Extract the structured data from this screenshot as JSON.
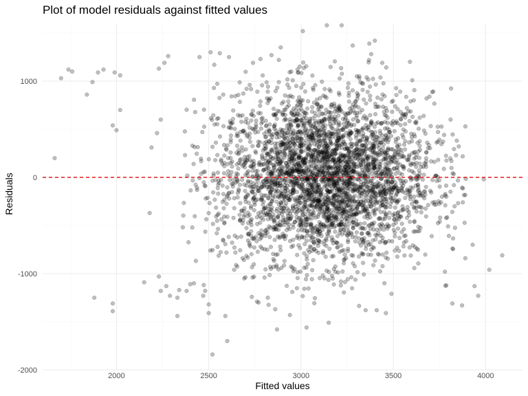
{
  "chart_data": {
    "type": "scatter",
    "title": "Plot of model residuals against fitted values",
    "xlabel": "Fitted values",
    "ylabel": "Residuals",
    "xlim": [
      1600,
      4200
    ],
    "ylim": [
      -2000,
      1600
    ],
    "x_ticks": [
      2000,
      2500,
      3000,
      3500,
      4000
    ],
    "x_tick_labels": [
      "2000",
      "2500",
      "3000",
      "3500",
      "4000"
    ],
    "y_ticks": [
      -2000,
      -1000,
      0,
      1000
    ],
    "y_tick_labels": [
      "-2000",
      "-1000",
      "0",
      "1000"
    ],
    "grid": true,
    "reference_line": {
      "y": 0,
      "style": "dashed",
      "color": "#e41a1c"
    },
    "point_color": "#000000",
    "cluster": {
      "center_x": 3130,
      "center_y": 0,
      "sd_x": 290,
      "sd_y": 440,
      "count": 3600
    },
    "points": [
      [
        1665,
        200
      ],
      [
        1700,
        1030
      ],
      [
        1740,
        1120
      ],
      [
        1760,
        1100
      ],
      [
        1840,
        860
      ],
      [
        1870,
        990
      ],
      [
        1900,
        1090
      ],
      [
        1930,
        1120
      ],
      [
        1980,
        540
      ],
      [
        1990,
        1090
      ],
      [
        2000,
        490
      ],
      [
        2020,
        1060
      ],
      [
        2020,
        700
      ],
      [
        1880,
        -1250
      ],
      [
        1980,
        -1310
      ],
      [
        1980,
        -1390
      ],
      [
        2150,
        -1090
      ],
      [
        2180,
        -370
      ],
      [
        2190,
        310
      ],
      [
        2220,
        460
      ],
      [
        2240,
        600
      ],
      [
        2230,
        1130
      ],
      [
        2260,
        1190
      ],
      [
        2280,
        1260
      ],
      [
        2230,
        -1030
      ],
      [
        2270,
        -1130
      ],
      [
        2240,
        -1180
      ],
      [
        2290,
        -1230
      ],
      [
        2340,
        -1170
      ],
      [
        2330,
        -1250
      ],
      [
        2330,
        -1440
      ],
      [
        2380,
        -1180
      ],
      [
        2400,
        -1110
      ],
      [
        2420,
        -1100
      ],
      [
        2470,
        -1230
      ],
      [
        2450,
        1250
      ],
      [
        2510,
        1300
      ],
      [
        2530,
        1170
      ],
      [
        2560,
        1290
      ],
      [
        2610,
        1250
      ],
      [
        2500,
        -1320
      ],
      [
        2500,
        -1410
      ],
      [
        2520,
        -1840
      ],
      [
        2600,
        -1700
      ],
      [
        2590,
        -1440
      ],
      [
        2770,
        -1300
      ],
      [
        2820,
        -1250
      ],
      [
        2860,
        -1370
      ],
      [
        2870,
        -1580
      ],
      [
        2940,
        -1430
      ],
      [
        3030,
        -1560
      ],
      [
        3150,
        -1510
      ],
      [
        3350,
        -1380
      ],
      [
        3410,
        -1380
      ],
      [
        3460,
        -1410
      ],
      [
        3490,
        -1210
      ],
      [
        2740,
        1190
      ],
      [
        2780,
        1230
      ],
      [
        2840,
        1270
      ],
      [
        2880,
        1220
      ],
      [
        2890,
        1350
      ],
      [
        3010,
        1520
      ],
      [
        3140,
        1580
      ],
      [
        3220,
        1580
      ],
      [
        3280,
        1370
      ],
      [
        3370,
        1390
      ],
      [
        3400,
        1420
      ],
      [
        3440,
        1190
      ],
      [
        3820,
        -1310
      ],
      [
        3940,
        -1130
      ],
      [
        3960,
        -1230
      ],
      [
        4020,
        -960
      ],
      [
        4090,
        -810
      ],
      [
        3780,
        -980
      ],
      [
        3890,
        -840
      ],
      [
        3930,
        -700
      ],
      [
        3990,
        -20
      ],
      [
        3840,
        230
      ],
      [
        3750,
        390
      ],
      [
        3680,
        820
      ]
    ]
  }
}
